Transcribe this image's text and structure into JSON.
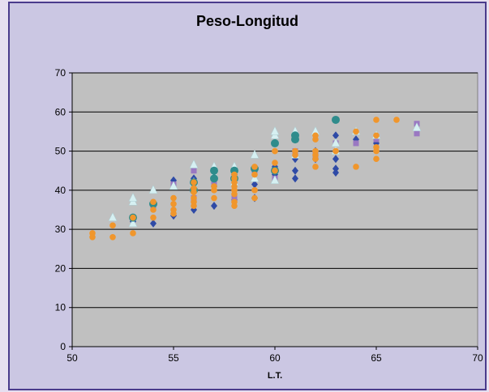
{
  "chart_data": {
    "type": "scatter",
    "title": "Peso-Longitud",
    "xlabel": "L.T.",
    "ylabel": "",
    "xlim": [
      50,
      70
    ],
    "ylim": [
      0,
      70
    ],
    "xticks": [
      50,
      55,
      60,
      65,
      70
    ],
    "yticks": [
      0,
      10,
      20,
      30,
      40,
      50,
      60,
      70
    ],
    "grid": "horizontal",
    "legend": "none",
    "colors": {
      "frame_bg": "#cbc7e3",
      "plot_bg": "#c0c0c0",
      "frame_border": "#4a3b8c"
    },
    "series": [
      {
        "marker": "diamond",
        "color": "#2e4aa6",
        "points": [
          [
            53,
            32
          ],
          [
            54,
            31.5
          ],
          [
            55,
            33.5
          ],
          [
            55,
            42.5
          ],
          [
            56,
            35
          ],
          [
            56,
            43
          ],
          [
            57,
            36
          ],
          [
            57,
            41
          ],
          [
            58,
            37.5
          ],
          [
            58,
            44
          ],
          [
            59,
            38
          ],
          [
            59,
            41.5
          ],
          [
            60,
            44
          ],
          [
            60,
            46
          ],
          [
            61,
            43
          ],
          [
            61,
            45
          ],
          [
            61,
            48
          ],
          [
            62,
            48
          ],
          [
            62,
            50
          ],
          [
            63,
            44.5
          ],
          [
            63,
            45.5
          ],
          [
            63,
            48
          ],
          [
            63,
            54
          ],
          [
            64,
            53
          ],
          [
            65,
            52
          ],
          [
            65,
            53.5
          ]
        ]
      },
      {
        "marker": "square",
        "color": "#9a78c2",
        "points": [
          [
            54,
            36
          ],
          [
            55,
            41.5
          ],
          [
            56,
            38
          ],
          [
            56,
            45
          ],
          [
            57,
            42
          ],
          [
            58,
            38
          ],
          [
            58,
            43
          ],
          [
            59,
            45
          ],
          [
            60,
            43
          ],
          [
            61,
            50
          ],
          [
            61,
            53
          ],
          [
            62,
            49
          ],
          [
            63,
            52
          ],
          [
            64,
            52
          ],
          [
            65,
            53
          ],
          [
            67,
            54.5
          ],
          [
            67,
            57
          ]
        ]
      },
      {
        "marker": "triangle",
        "color": "#d6f0f2",
        "points": [
          [
            52,
            33
          ],
          [
            53,
            37
          ],
          [
            53,
            38
          ],
          [
            53,
            31.5
          ],
          [
            54,
            40
          ],
          [
            55,
            41
          ],
          [
            56,
            46.5
          ],
          [
            56,
            42
          ],
          [
            57,
            46
          ],
          [
            57,
            44
          ],
          [
            58,
            46
          ],
          [
            58,
            42
          ],
          [
            59,
            49
          ],
          [
            59,
            43
          ],
          [
            60,
            54
          ],
          [
            60,
            55
          ],
          [
            60,
            42.5
          ],
          [
            61,
            55
          ],
          [
            61,
            49
          ],
          [
            62,
            55
          ],
          [
            63,
            50
          ],
          [
            63,
            52
          ],
          [
            64,
            55
          ],
          [
            65,
            54
          ],
          [
            67,
            56
          ]
        ]
      },
      {
        "marker": "circle",
        "color": "#2f8c8c",
        "points": [
          [
            53,
            33
          ],
          [
            54,
            36.5
          ],
          [
            56,
            40
          ],
          [
            56,
            42
          ],
          [
            57,
            45
          ],
          [
            57,
            43
          ],
          [
            58,
            45
          ],
          [
            58,
            43
          ],
          [
            59,
            45.5
          ],
          [
            60,
            52
          ],
          [
            60,
            45
          ],
          [
            61,
            54
          ],
          [
            61,
            53
          ],
          [
            63,
            58
          ]
        ]
      },
      {
        "marker": "circle",
        "color": "#f0962c",
        "points": [
          [
            51,
            28
          ],
          [
            51,
            29
          ],
          [
            52,
            28
          ],
          [
            52,
            31
          ],
          [
            53,
            29
          ],
          [
            53,
            33
          ],
          [
            54,
            33
          ],
          [
            54,
            35
          ],
          [
            54,
            37
          ],
          [
            55,
            34
          ],
          [
            55,
            35
          ],
          [
            55,
            36.5
          ],
          [
            55,
            38
          ],
          [
            56,
            36
          ],
          [
            56,
            37
          ],
          [
            56,
            38
          ],
          [
            56,
            39.5
          ],
          [
            56,
            40.5
          ],
          [
            56,
            42
          ],
          [
            57,
            38
          ],
          [
            57,
            40
          ],
          [
            57,
            41
          ],
          [
            58,
            36
          ],
          [
            58,
            37
          ],
          [
            58,
            39
          ],
          [
            58,
            40
          ],
          [
            58,
            41
          ],
          [
            58,
            42
          ],
          [
            58,
            43
          ],
          [
            58,
            44
          ],
          [
            59,
            38
          ],
          [
            59,
            40
          ],
          [
            59,
            44
          ],
          [
            59,
            46
          ],
          [
            60,
            45
          ],
          [
            60,
            47
          ],
          [
            60,
            50
          ],
          [
            61,
            49
          ],
          [
            61,
            50
          ],
          [
            62,
            46
          ],
          [
            62,
            48
          ],
          [
            62,
            49
          ],
          [
            62,
            50
          ],
          [
            62,
            53
          ],
          [
            62,
            54
          ],
          [
            63,
            50
          ],
          [
            64,
            46
          ],
          [
            64,
            55
          ],
          [
            65,
            48
          ],
          [
            65,
            50
          ],
          [
            65,
            51
          ],
          [
            65,
            54
          ],
          [
            65,
            58
          ],
          [
            66,
            58
          ]
        ]
      }
    ]
  }
}
